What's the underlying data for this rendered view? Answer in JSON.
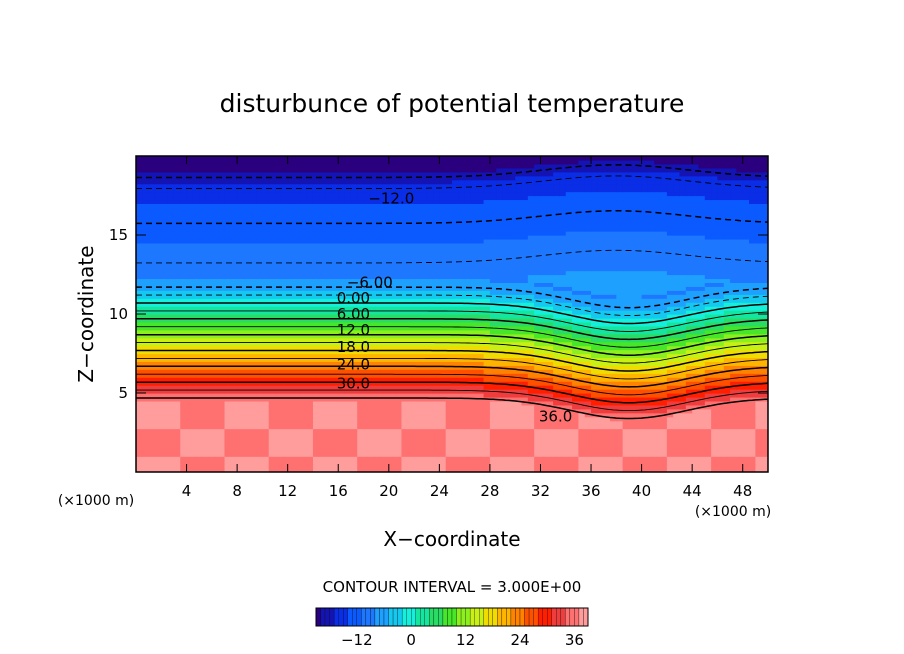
{
  "chart_data": {
    "type": "contour",
    "title": "disturbunce of potential temperature",
    "xlabel": "X−coordinate",
    "ylabel": "Z−coordinate",
    "x_unit_left": "(×1000 m)",
    "x_unit_right": "(×1000 m)",
    "xlim": [
      0,
      50
    ],
    "ylim": [
      0,
      20
    ],
    "x_ticks": [
      4,
      8,
      12,
      16,
      20,
      24,
      28,
      32,
      36,
      40,
      44,
      48
    ],
    "y_ticks": [
      5,
      10,
      15
    ],
    "contour_interval_text": "CONTOUR INTERVAL = 3.000E+00",
    "contour_interval": 3,
    "colorbar": {
      "min": -21,
      "max": 39,
      "step": 3,
      "ticks": [
        -12,
        0,
        12,
        24,
        36
      ],
      "tick_labels": [
        "−12",
        "0",
        "12",
        "24",
        "36"
      ]
    },
    "contour_labels": [
      {
        "value": -12,
        "text": "−12.0",
        "x": 20.2,
        "z": 17.3
      },
      {
        "value": -6,
        "text": "−6.00",
        "x": 18.5,
        "z": 12.0
      },
      {
        "value": 0,
        "text": "0.00",
        "x": 17.2,
        "z": 11.0
      },
      {
        "value": 6,
        "text": "6.00",
        "x": 17.2,
        "z": 10.0
      },
      {
        "value": 12,
        "text": "12.0",
        "x": 17.2,
        "z": 9.0
      },
      {
        "value": 18,
        "text": "18.0",
        "x": 17.2,
        "z": 7.9
      },
      {
        "value": 24,
        "text": "24.0",
        "x": 17.2,
        "z": 6.8
      },
      {
        "value": 30,
        "text": "30.0",
        "x": 17.2,
        "z": 5.6
      },
      {
        "value": 36,
        "text": "36.0",
        "x": 33.2,
        "z": 3.5
      }
    ],
    "color_stops": [
      {
        "value": -21,
        "color": "#2a007f"
      },
      {
        "value": -18,
        "color": "#1414b4"
      },
      {
        "value": -15,
        "color": "#0a2de6"
      },
      {
        "value": -12,
        "color": "#0a5aff"
      },
      {
        "value": -9,
        "color": "#1e78ff"
      },
      {
        "value": -6,
        "color": "#1ea0ff"
      },
      {
        "value": -3,
        "color": "#14c8f0"
      },
      {
        "value": 0,
        "color": "#14f0dc"
      },
      {
        "value": 3,
        "color": "#14e6a0"
      },
      {
        "value": 6,
        "color": "#28dc64"
      },
      {
        "value": 9,
        "color": "#46e628"
      },
      {
        "value": 12,
        "color": "#8cf01e"
      },
      {
        "value": 15,
        "color": "#c8f014"
      },
      {
        "value": 18,
        "color": "#f0dc00"
      },
      {
        "value": 21,
        "color": "#ffb400"
      },
      {
        "value": 24,
        "color": "#ff8200"
      },
      {
        "value": 27,
        "color": "#ff5000"
      },
      {
        "value": 30,
        "color": "#ff1e00"
      },
      {
        "value": 33,
        "color": "#ef3c3c"
      },
      {
        "value": 36,
        "color": "#ff7070"
      },
      {
        "value": 39,
        "color": "#ff9c9c"
      }
    ]
  }
}
